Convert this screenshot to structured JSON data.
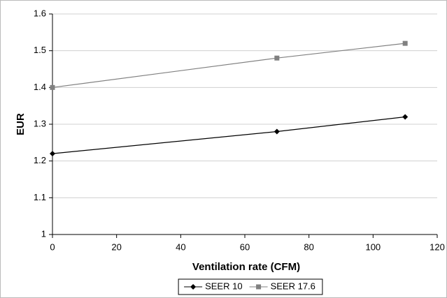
{
  "chart_data": {
    "type": "line",
    "x_label": "Ventilation rate (CFM)",
    "y_label": "EUR",
    "x": [
      0,
      70,
      110
    ],
    "series": [
      {
        "name": "SEER 10",
        "color": "#000000",
        "marker": "diamond",
        "values": [
          1.22,
          1.28,
          1.32
        ]
      },
      {
        "name": "SEER 17.6",
        "color": "#808080",
        "marker": "square",
        "values": [
          1.4,
          1.48,
          1.52
        ]
      }
    ],
    "xlim": [
      0,
      120
    ],
    "xticks": [
      0,
      20,
      40,
      60,
      80,
      100,
      120
    ],
    "ylim": [
      1,
      1.6
    ],
    "yticks": [
      1,
      1.1,
      1.2,
      1.3,
      1.4,
      1.5,
      1.6
    ],
    "grid": true,
    "legend": "bottom"
  }
}
